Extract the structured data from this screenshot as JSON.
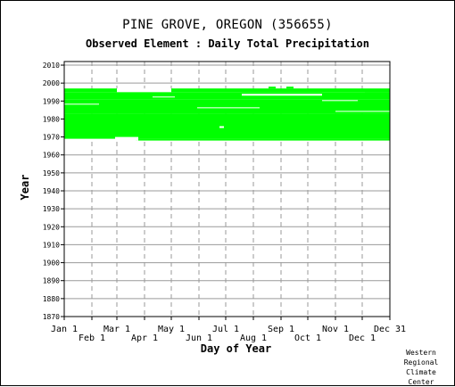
{
  "chart_data": {
    "type": "scatter",
    "title": "PINE GROVE, OREGON   (356655)",
    "subtitle": "Observed Element : Daily Total Precipitation",
    "xlabel": "Day of Year",
    "ylabel": "Year",
    "ylim": [
      1870,
      2012
    ],
    "xlim": [
      1,
      366
    ],
    "yticks": [
      2010,
      2000,
      1990,
      1980,
      1970,
      1960,
      1950,
      1940,
      1930,
      1920,
      1910,
      1900,
      1890,
      1880,
      1870
    ],
    "xticks_top_row": [
      {
        "label": "Jan 1",
        "day": 1
      },
      {
        "label": "Mar 1",
        "day": 60
      },
      {
        "label": "May 1",
        "day": 121
      },
      {
        "label": "Jul 1",
        "day": 182
      },
      {
        "label": "Sep 1",
        "day": 244
      },
      {
        "label": "Nov 1",
        "day": 305
      },
      {
        "label": "Dec 31",
        "day": 366
      }
    ],
    "xticks_bottom_row": [
      {
        "label": "Feb 1",
        "day": 32
      },
      {
        "label": "Apr 1",
        "day": 91
      },
      {
        "label": "Jun 1",
        "day": 152
      },
      {
        "label": "Aug 1",
        "day": 213
      },
      {
        "label": "Oct 1",
        "day": 274
      },
      {
        "label": "Dec 1",
        "day": 335
      }
    ],
    "grid": true,
    "series": [
      {
        "color": "#00ff00",
        "blocks": [
          {
            "x0": 1,
            "x1": 366,
            "y0": 1969,
            "y1": 1983
          },
          {
            "x0": 1,
            "x1": 366,
            "y0": 1983,
            "y1": 1991
          },
          {
            "x0": 1,
            "x1": 366,
            "y0": 1991,
            "y1": 1995
          },
          {
            "x0": 81,
            "x1": 366,
            "y0": 1968,
            "y1": 1969
          },
          {
            "x0": 1,
            "x1": 60,
            "y0": 1995,
            "y1": 1997
          },
          {
            "x0": 121,
            "x1": 366,
            "y0": 1995,
            "y1": 1997
          },
          {
            "x0": 230,
            "x1": 238,
            "y0": 1997,
            "y1": 1998
          },
          {
            "x0": 250,
            "x1": 258,
            "y0": 1997,
            "y1": 1998
          },
          {
            "x0": 338,
            "x1": 366,
            "y0": 1995,
            "y1": 1996
          }
        ],
        "gaps": [
          {
            "x0": 58,
            "x1": 84,
            "y0": 1968,
            "y1": 1970
          },
          {
            "x0": 60,
            "x1": 121,
            "y0": 1995,
            "y1": 1997
          },
          {
            "x0": 200,
            "x1": 290,
            "y0": 1993,
            "y1": 1994
          },
          {
            "x0": 150,
            "x1": 220,
            "y0": 1986,
            "y1": 1986.5
          },
          {
            "x0": 290,
            "x1": 330,
            "y0": 1990,
            "y1": 1990.5
          },
          {
            "x0": 305,
            "x1": 366,
            "y0": 1984,
            "y1": 1984.5
          },
          {
            "x0": 1,
            "x1": 40,
            "y0": 1988,
            "y1": 1988.5
          },
          {
            "x0": 100,
            "x1": 125,
            "y0": 1992,
            "y1": 1992.5
          },
          {
            "x0": 175,
            "x1": 180,
            "y0": 1975,
            "y1": 1976
          }
        ]
      }
    ]
  },
  "credit_lines": [
    "Western",
    "Regional",
    "Climate",
    "Center"
  ]
}
